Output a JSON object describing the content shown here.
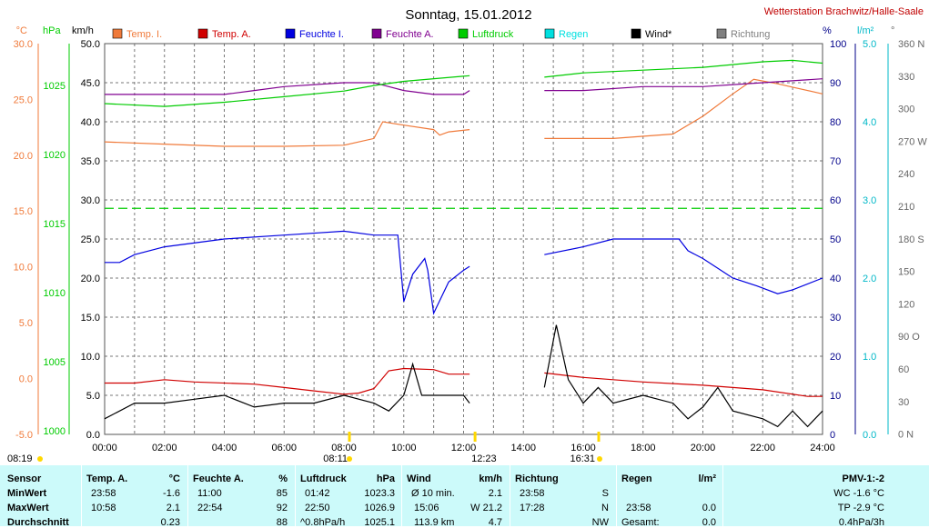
{
  "title": "Sonntag, 15.01.2012",
  "station": "Wetterstation Brachwitz/Halle-Saale",
  "colors": {
    "temp_i": "#f07a3a",
    "temp_a": "#d00000",
    "feuchte_i": "#0000e0",
    "feuchte_a": "#800090",
    "luftdruck": "#00cc00",
    "regen": "#00e0e0",
    "wind": "#000000",
    "richtung": "#808080"
  },
  "legend": [
    {
      "key": "temp_i",
      "label": "Temp. I."
    },
    {
      "key": "temp_a",
      "label": "Temp. A."
    },
    {
      "key": "feuchte_i",
      "label": "Feuchte I."
    },
    {
      "key": "feuchte_a",
      "label": "Feuchte A."
    },
    {
      "key": "luftdruck",
      "label": "Luftdruck"
    },
    {
      "key": "regen",
      "label": "Regen"
    },
    {
      "key": "wind",
      "label": "Wind*"
    },
    {
      "key": "richtung",
      "label": "Richtung"
    }
  ],
  "axes": {
    "temp": {
      "unit": "°C",
      "ticks": [
        "30.0",
        "25.0",
        "20.0",
        "15.0",
        "10.0",
        "5.0",
        "0.0",
        "-5.0"
      ]
    },
    "pressure": {
      "unit": "hPa",
      "ticks": [
        "1025",
        "1020",
        "1015",
        "1010",
        "1005",
        "1000"
      ]
    },
    "wind": {
      "unit": "km/h",
      "ticks": [
        "50.0",
        "45.0",
        "40.0",
        "35.0",
        "30.0",
        "25.0",
        "20.0",
        "15.0",
        "10.0",
        "5.0",
        "0.0"
      ]
    },
    "humidity": {
      "unit": "%",
      "ticks": [
        "100",
        "90",
        "80",
        "70",
        "60",
        "50",
        "40",
        "30",
        "20",
        "10",
        "0"
      ]
    },
    "rain": {
      "unit": "l/m²",
      "ticks": [
        "5.0",
        "4.0",
        "3.0",
        "2.0",
        "1.0",
        "0.0"
      ]
    },
    "direction": {
      "unit": "°",
      "ticks": [
        "360 N",
        "330",
        "300",
        "270 W",
        "240",
        "210",
        "180 S",
        "150",
        "120",
        "90 O",
        "60",
        "30",
        "0 N"
      ]
    },
    "time": {
      "ticks": [
        "00:00",
        "02:00",
        "04:00",
        "06:00",
        "08:00",
        "10:00",
        "12:00",
        "14:00",
        "16:00",
        "18:00",
        "20:00",
        "22:00",
        "24:00"
      ]
    }
  },
  "markers": {
    "sunrise": "08:11",
    "noon": "12:23",
    "sunset": "16:31",
    "sunrise_prev": "08:19"
  },
  "chart_data": {
    "type": "line",
    "x_unit": "hours",
    "series": [
      {
        "name": "Temp. I.",
        "axis": "temp",
        "points": [
          [
            0,
            21.2
          ],
          [
            2,
            21.0
          ],
          [
            4,
            20.8
          ],
          [
            6,
            20.8
          ],
          [
            8,
            20.9
          ],
          [
            9,
            21.5
          ],
          [
            9.3,
            23.0
          ],
          [
            10,
            22.7
          ],
          [
            11,
            22.3
          ],
          [
            11.2,
            21.8
          ],
          [
            11.5,
            22.1
          ],
          [
            12.2,
            22.3
          ],
          [
            14.6,
            null
          ],
          [
            14.7,
            21.5
          ],
          [
            17,
            21.5
          ],
          [
            19,
            21.9
          ],
          [
            20,
            23.5
          ],
          [
            21,
            25.5
          ],
          [
            21.7,
            26.8
          ],
          [
            22.5,
            26.4
          ],
          [
            23,
            26.1
          ],
          [
            24,
            25.5
          ]
        ]
      },
      {
        "name": "Temp. A.",
        "axis": "temp",
        "points": [
          [
            0,
            -0.4
          ],
          [
            1,
            -0.4
          ],
          [
            2,
            -0.1
          ],
          [
            3,
            -0.3
          ],
          [
            5,
            -0.5
          ],
          [
            6,
            -0.8
          ],
          [
            7,
            -1.1
          ],
          [
            8,
            -1.4
          ],
          [
            8.5,
            -1.3
          ],
          [
            9,
            -0.9
          ],
          [
            9.5,
            0.7
          ],
          [
            10,
            0.9
          ],
          [
            11,
            0.8
          ],
          [
            11.5,
            0.4
          ],
          [
            12.2,
            0.4
          ],
          [
            14.6,
            null
          ],
          [
            14.7,
            0.5
          ],
          [
            16,
            0.1
          ],
          [
            18,
            -0.3
          ],
          [
            20,
            -0.6
          ],
          [
            22,
            -1.0
          ],
          [
            23.5,
            -1.6
          ],
          [
            24,
            -1.6
          ]
        ]
      },
      {
        "name": "Feuchte I.",
        "axis": "humidity",
        "points": [
          [
            0,
            44
          ],
          [
            0.5,
            44
          ],
          [
            1,
            46
          ],
          [
            2,
            48
          ],
          [
            4,
            50
          ],
          [
            6,
            51
          ],
          [
            8,
            52
          ],
          [
            9,
            51
          ],
          [
            9.8,
            51
          ],
          [
            10,
            34
          ],
          [
            10.3,
            41
          ],
          [
            10.7,
            45
          ],
          [
            10.8,
            42
          ],
          [
            11,
            31
          ],
          [
            11.5,
            39
          ],
          [
            12,
            42
          ],
          [
            12.2,
            43
          ],
          [
            14.6,
            null
          ],
          [
            14.7,
            46
          ],
          [
            16,
            48
          ],
          [
            17,
            50
          ],
          [
            19.2,
            50
          ],
          [
            19.5,
            47
          ],
          [
            20,
            45
          ],
          [
            21,
            40
          ],
          [
            21.8,
            38
          ],
          [
            22.5,
            36
          ],
          [
            23,
            37
          ],
          [
            24,
            40
          ]
        ]
      },
      {
        "name": "Feuchte A.",
        "axis": "humidity",
        "points": [
          [
            0,
            87
          ],
          [
            2,
            87
          ],
          [
            4,
            87
          ],
          [
            5,
            88
          ],
          [
            6,
            89
          ],
          [
            8,
            90
          ],
          [
            9,
            90
          ],
          [
            9.5,
            89
          ],
          [
            10,
            88
          ],
          [
            11,
            87
          ],
          [
            12,
            87
          ],
          [
            12.2,
            88
          ],
          [
            14.6,
            null
          ],
          [
            14.7,
            88
          ],
          [
            16,
            88
          ],
          [
            18,
            89
          ],
          [
            20,
            89
          ],
          [
            22,
            90
          ],
          [
            24,
            91
          ]
        ]
      },
      {
        "name": "Luftdruck",
        "axis": "pressure",
        "points": [
          [
            0,
            1023.7
          ],
          [
            2,
            1023.5
          ],
          [
            4,
            1023.8
          ],
          [
            6,
            1024.2
          ],
          [
            8,
            1024.6
          ],
          [
            9,
            1025.0
          ],
          [
            10,
            1025.3
          ],
          [
            12.2,
            1025.7
          ],
          [
            14.6,
            null
          ],
          [
            14.7,
            1025.6
          ],
          [
            16,
            1025.9
          ],
          [
            18,
            1026.1
          ],
          [
            20,
            1026.3
          ],
          [
            22,
            1026.7
          ],
          [
            23,
            1026.8
          ],
          [
            24,
            1026.6
          ]
        ]
      },
      {
        "name": "Wind*",
        "axis": "wind",
        "points": [
          [
            0,
            2
          ],
          [
            1,
            4
          ],
          [
            2,
            4
          ],
          [
            3,
            4.5
          ],
          [
            4,
            5
          ],
          [
            5,
            3.5
          ],
          [
            6,
            4
          ],
          [
            7,
            4
          ],
          [
            8,
            5
          ],
          [
            9,
            4
          ],
          [
            9.5,
            3
          ],
          [
            10,
            5
          ],
          [
            10.3,
            9
          ],
          [
            10.6,
            5
          ],
          [
            11,
            5
          ],
          [
            12,
            5
          ],
          [
            12.2,
            4
          ],
          [
            14.6,
            null
          ],
          [
            14.7,
            6
          ],
          [
            15.1,
            14
          ],
          [
            15.5,
            7
          ],
          [
            16,
            4
          ],
          [
            16.5,
            6
          ],
          [
            17,
            4
          ],
          [
            18,
            5
          ],
          [
            19,
            4
          ],
          [
            19.5,
            2
          ],
          [
            20,
            3.5
          ],
          [
            20.5,
            6
          ],
          [
            21,
            3
          ],
          [
            22,
            2
          ],
          [
            22.5,
            1
          ],
          [
            23,
            3
          ],
          [
            23.5,
            1
          ],
          [
            24,
            3
          ]
        ]
      }
    ]
  },
  "summary": {
    "sensor": {
      "h": "Sensor",
      "rows": [
        "MinWert",
        "MaxWert",
        "Durchschnitt"
      ]
    },
    "temp_a": {
      "h": "Temp. A.",
      "u": "°C",
      "times": [
        "23:58",
        "10:58",
        ""
      ],
      "vals": [
        "-1.6",
        "2.1",
        "0.23"
      ]
    },
    "feuchte_a": {
      "h": "Feuchte A.",
      "u": "%",
      "times": [
        "11:00",
        "22:54",
        ""
      ],
      "vals": [
        "85",
        "92",
        "88"
      ]
    },
    "luftdruck": {
      "h": "Luftdruck",
      "u": "hPa",
      "times": [
        "01:42",
        "22:50",
        "^0.8hPa/h"
      ],
      "vals": [
        "1023.3",
        "1026.9",
        "1025.1"
      ]
    },
    "wind": {
      "h": "Wind",
      "u": "km/h",
      "times": [
        "Ø 10 min.",
        "15:06",
        "113.9 km"
      ],
      "vals": [
        "2.1",
        "W 21.2",
        "4.7"
      ]
    },
    "richtung": {
      "h": "Richtung",
      "times": [
        "23:58",
        "17:28",
        ""
      ],
      "vals": [
        "S",
        "N",
        "NW"
      ]
    },
    "regen": {
      "h": "Regen",
      "u": "l/m²",
      "times": [
        "",
        "23:58",
        "Gesamt:"
      ],
      "vals": [
        "",
        "0.0",
        "0.0"
      ]
    },
    "pmv": {
      "h": "PMV-1:-2",
      "rows": [
        "WC -1.6 °C",
        "TP -2.9 °C",
        "0.4hPa/3h"
      ]
    }
  }
}
